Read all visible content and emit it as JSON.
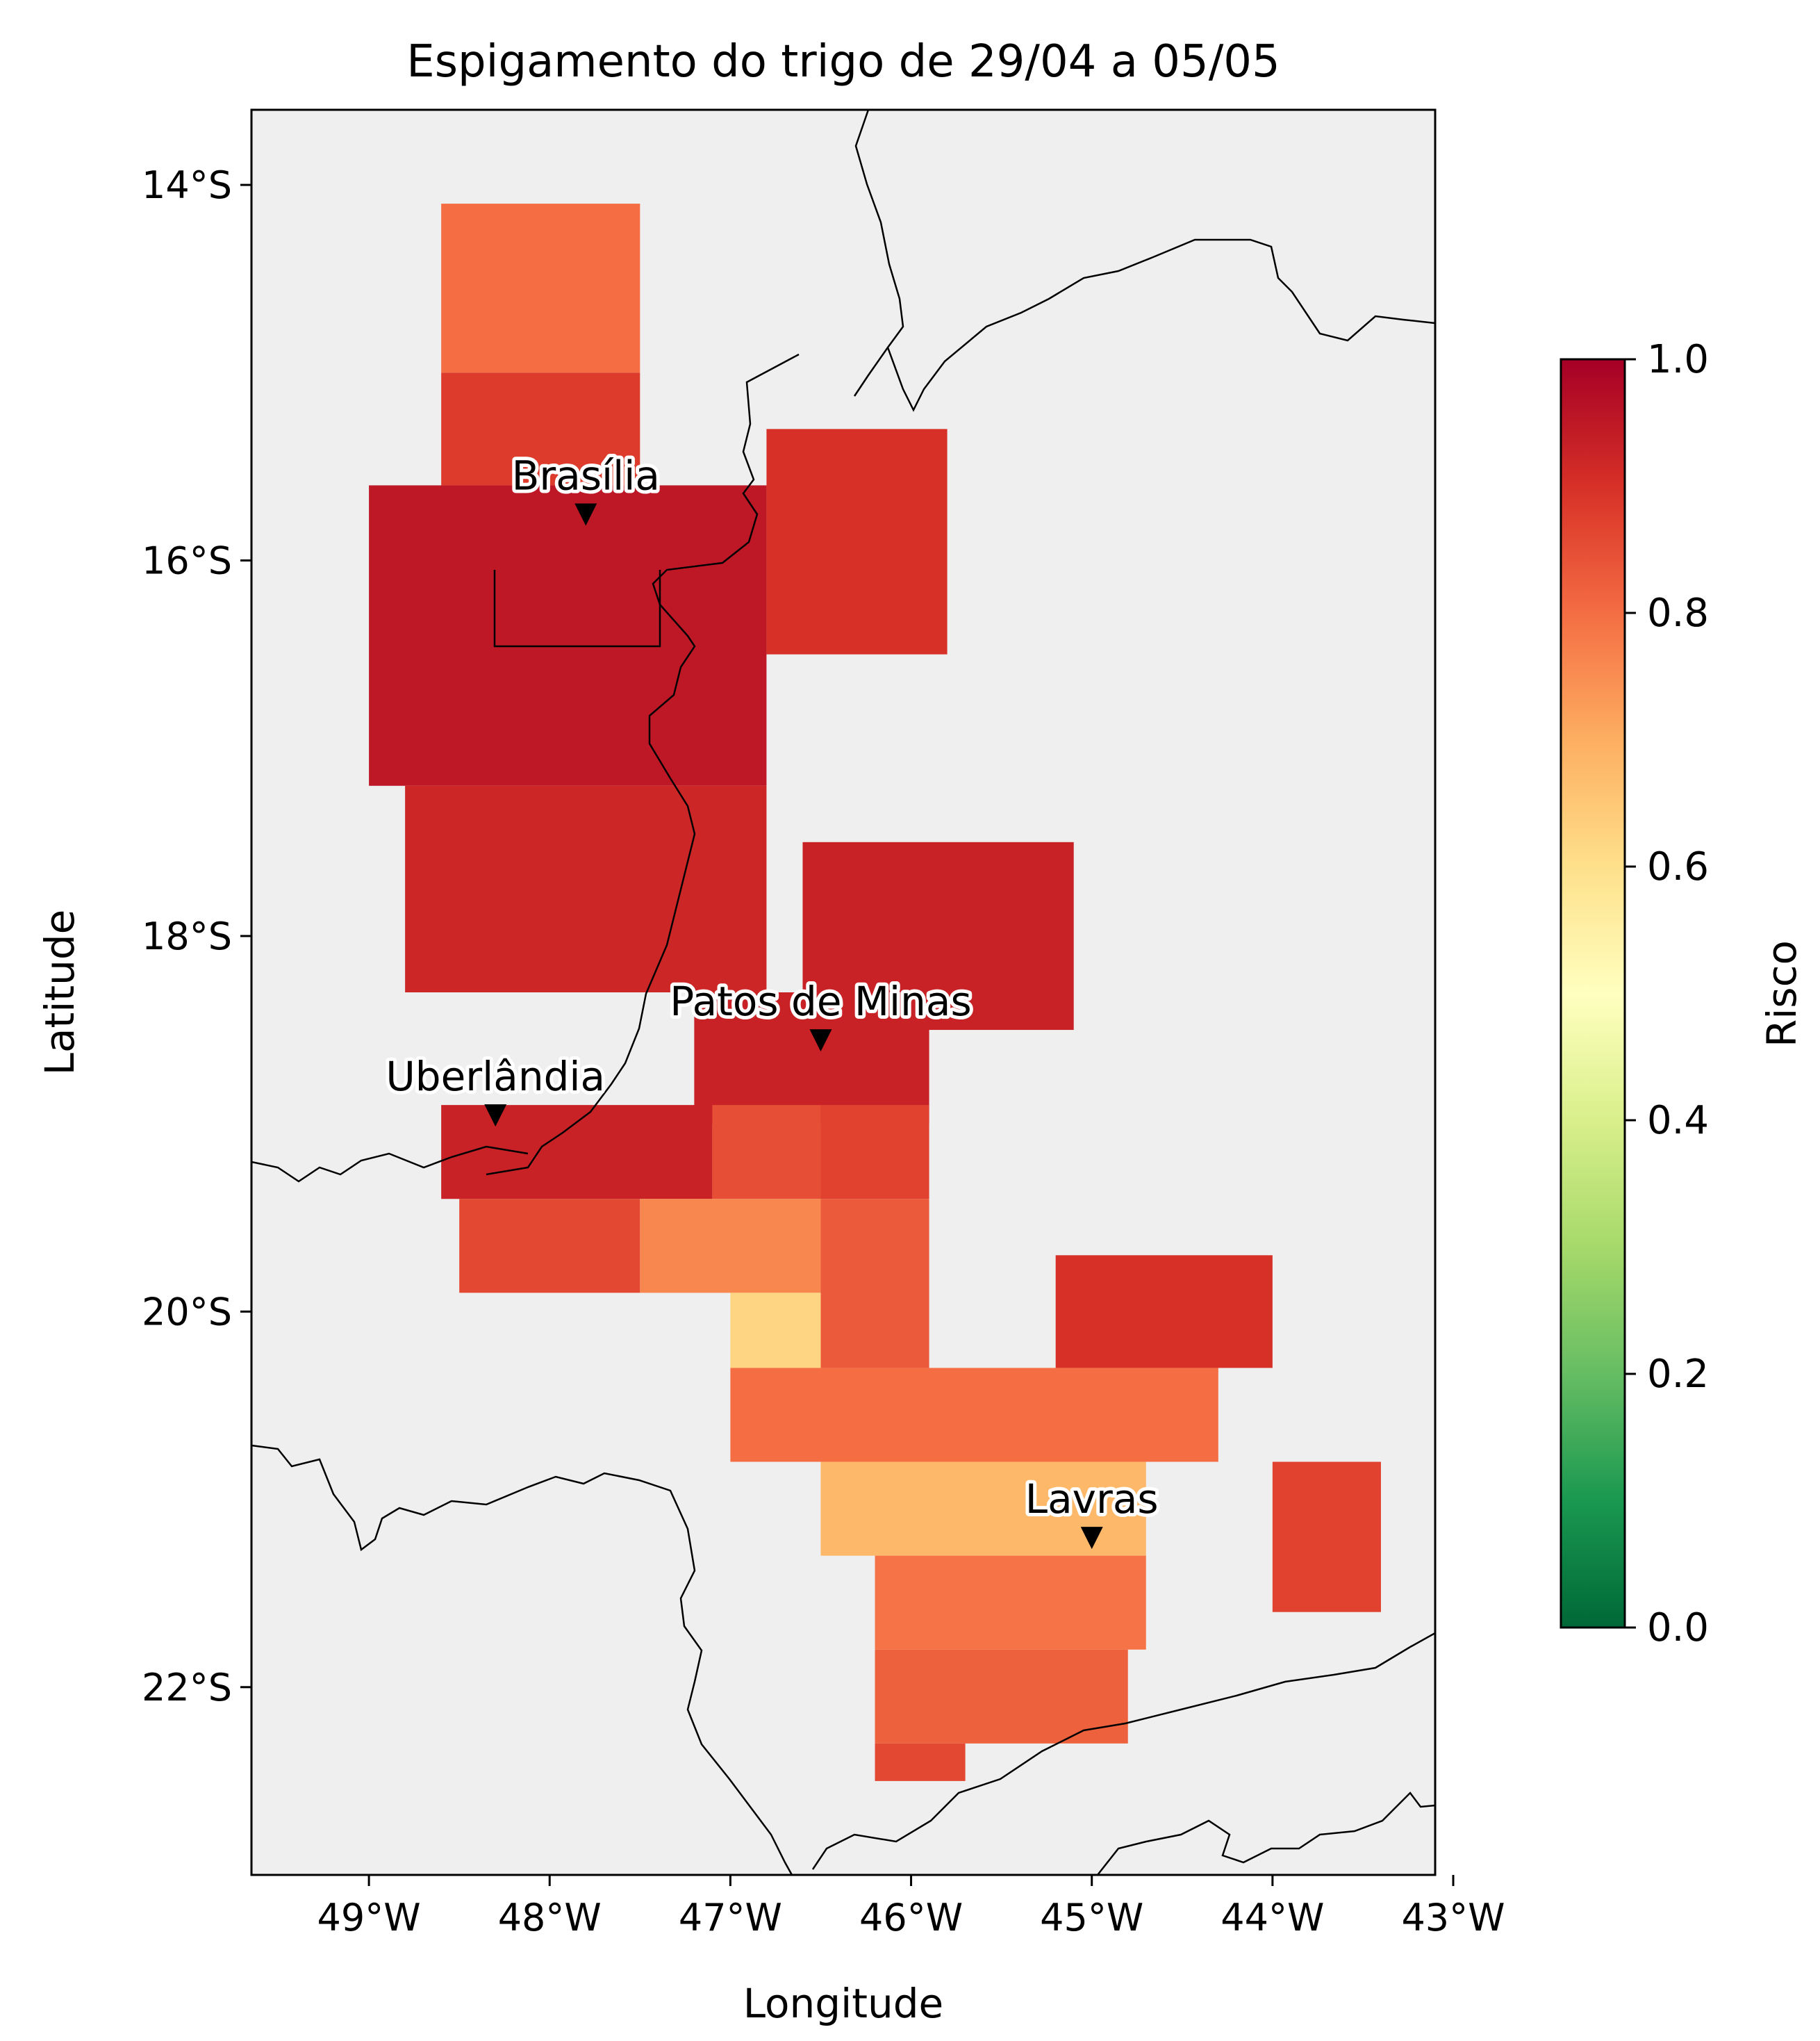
{
  "title": "Espigamento do trigo de 29/04 a 05/05",
  "xlabel": "Longitude",
  "ylabel": "Latitude",
  "x_ticks": [
    "49°W",
    "48°W",
    "47°W",
    "46°W",
    "45°W",
    "44°W",
    "43°W"
  ],
  "y_ticks": [
    "14°S",
    "16°S",
    "18°S",
    "20°S",
    "22°S"
  ],
  "colorbar": {
    "label": "Risco",
    "ticks": [
      "0.0",
      "0.2",
      "0.4",
      "0.6",
      "0.8",
      "1.0"
    ],
    "colormap": [
      "#006837",
      "#1a9850",
      "#66bd63",
      "#a6d96a",
      "#d9ef8b",
      "#ffffbf",
      "#fee08b",
      "#fdae61",
      "#f46d43",
      "#d73027",
      "#a50026"
    ]
  },
  "colors": {
    "ocean_background": "#efefef",
    "border_line": "#000000",
    "marker": "#000000"
  },
  "chart_data": {
    "type": "heatmap",
    "xlim": [
      -49.65,
      -43.1
    ],
    "ylim": [
      -23.0,
      -13.6
    ],
    "value_range": [
      0.0,
      1.0
    ],
    "cities": [
      {
        "name": "Brasília",
        "lon": -47.8,
        "lat": -15.8
      },
      {
        "name": "Patos de Minas",
        "lon": -46.5,
        "lat": -18.6
      },
      {
        "name": "Uberlândia",
        "lon": -48.3,
        "lat": -19.0
      },
      {
        "name": "Lavras",
        "lon": -45.0,
        "lat": -21.25
      }
    ],
    "risk_regions": [
      {
        "lon": [
          -48.6,
          -47.5
        ],
        "lat": [
          -15.0,
          -14.1
        ],
        "risk": 0.8
      },
      {
        "lon": [
          -48.6,
          -47.5
        ],
        "lat": [
          -15.6,
          -15.0
        ],
        "risk": 0.88
      },
      {
        "lon": [
          -49.0,
          -46.8
        ],
        "lat": [
          -17.2,
          -15.6
        ],
        "risk": 0.95
      },
      {
        "lon": [
          -48.8,
          -46.8
        ],
        "lat": [
          -18.3,
          -17.2
        ],
        "risk": 0.92
      },
      {
        "lon": [
          -46.8,
          -45.8
        ],
        "lat": [
          -16.5,
          -15.3
        ],
        "risk": 0.9
      },
      {
        "lon": [
          -46.6,
          -45.1
        ],
        "lat": [
          -18.5,
          -17.5
        ],
        "risk": 0.93
      },
      {
        "lon": [
          -47.2,
          -45.9
        ],
        "lat": [
          -19.0,
          -18.3
        ],
        "risk": 0.93
      },
      {
        "lon": [
          -48.6,
          -47.1
        ],
        "lat": [
          -19.4,
          -18.9
        ],
        "risk": 0.93
      },
      {
        "lon": [
          -47.1,
          -46.5
        ],
        "lat": [
          -19.4,
          -18.9
        ],
        "risk": 0.85
      },
      {
        "lon": [
          -46.5,
          -45.9
        ],
        "lat": [
          -19.4,
          -18.9
        ],
        "risk": 0.87
      },
      {
        "lon": [
          -48.5,
          -47.5
        ],
        "lat": [
          -19.9,
          -19.4
        ],
        "risk": 0.86
      },
      {
        "lon": [
          -47.5,
          -46.5
        ],
        "lat": [
          -19.9,
          -19.4
        ],
        "risk": 0.76
      },
      {
        "lon": [
          -46.5,
          -45.9
        ],
        "lat": [
          -20.3,
          -19.4
        ],
        "risk": 0.83
      },
      {
        "lon": [
          -47.0,
          -46.5
        ],
        "lat": [
          -20.3,
          -19.9
        ],
        "risk": 0.62
      },
      {
        "lon": [
          -45.2,
          -44.0
        ],
        "lat": [
          -20.3,
          -19.7
        ],
        "risk": 0.9
      },
      {
        "lon": [
          -47.0,
          -44.3
        ],
        "lat": [
          -20.8,
          -20.3
        ],
        "risk": 0.8
      },
      {
        "lon": [
          -46.5,
          -44.7
        ],
        "lat": [
          -21.3,
          -20.8
        ],
        "risk": 0.68
      },
      {
        "lon": [
          -44.0,
          -43.4
        ],
        "lat": [
          -21.6,
          -20.8
        ],
        "risk": 0.87
      },
      {
        "lon": [
          -46.2,
          -44.7
        ],
        "lat": [
          -21.8,
          -21.3
        ],
        "risk": 0.79
      },
      {
        "lon": [
          -46.2,
          -44.8
        ],
        "lat": [
          -22.3,
          -21.8
        ],
        "risk": 0.82
      },
      {
        "lon": [
          -46.2,
          -45.7
        ],
        "lat": [
          -22.5,
          -22.3
        ],
        "risk": 0.86
      }
    ]
  }
}
